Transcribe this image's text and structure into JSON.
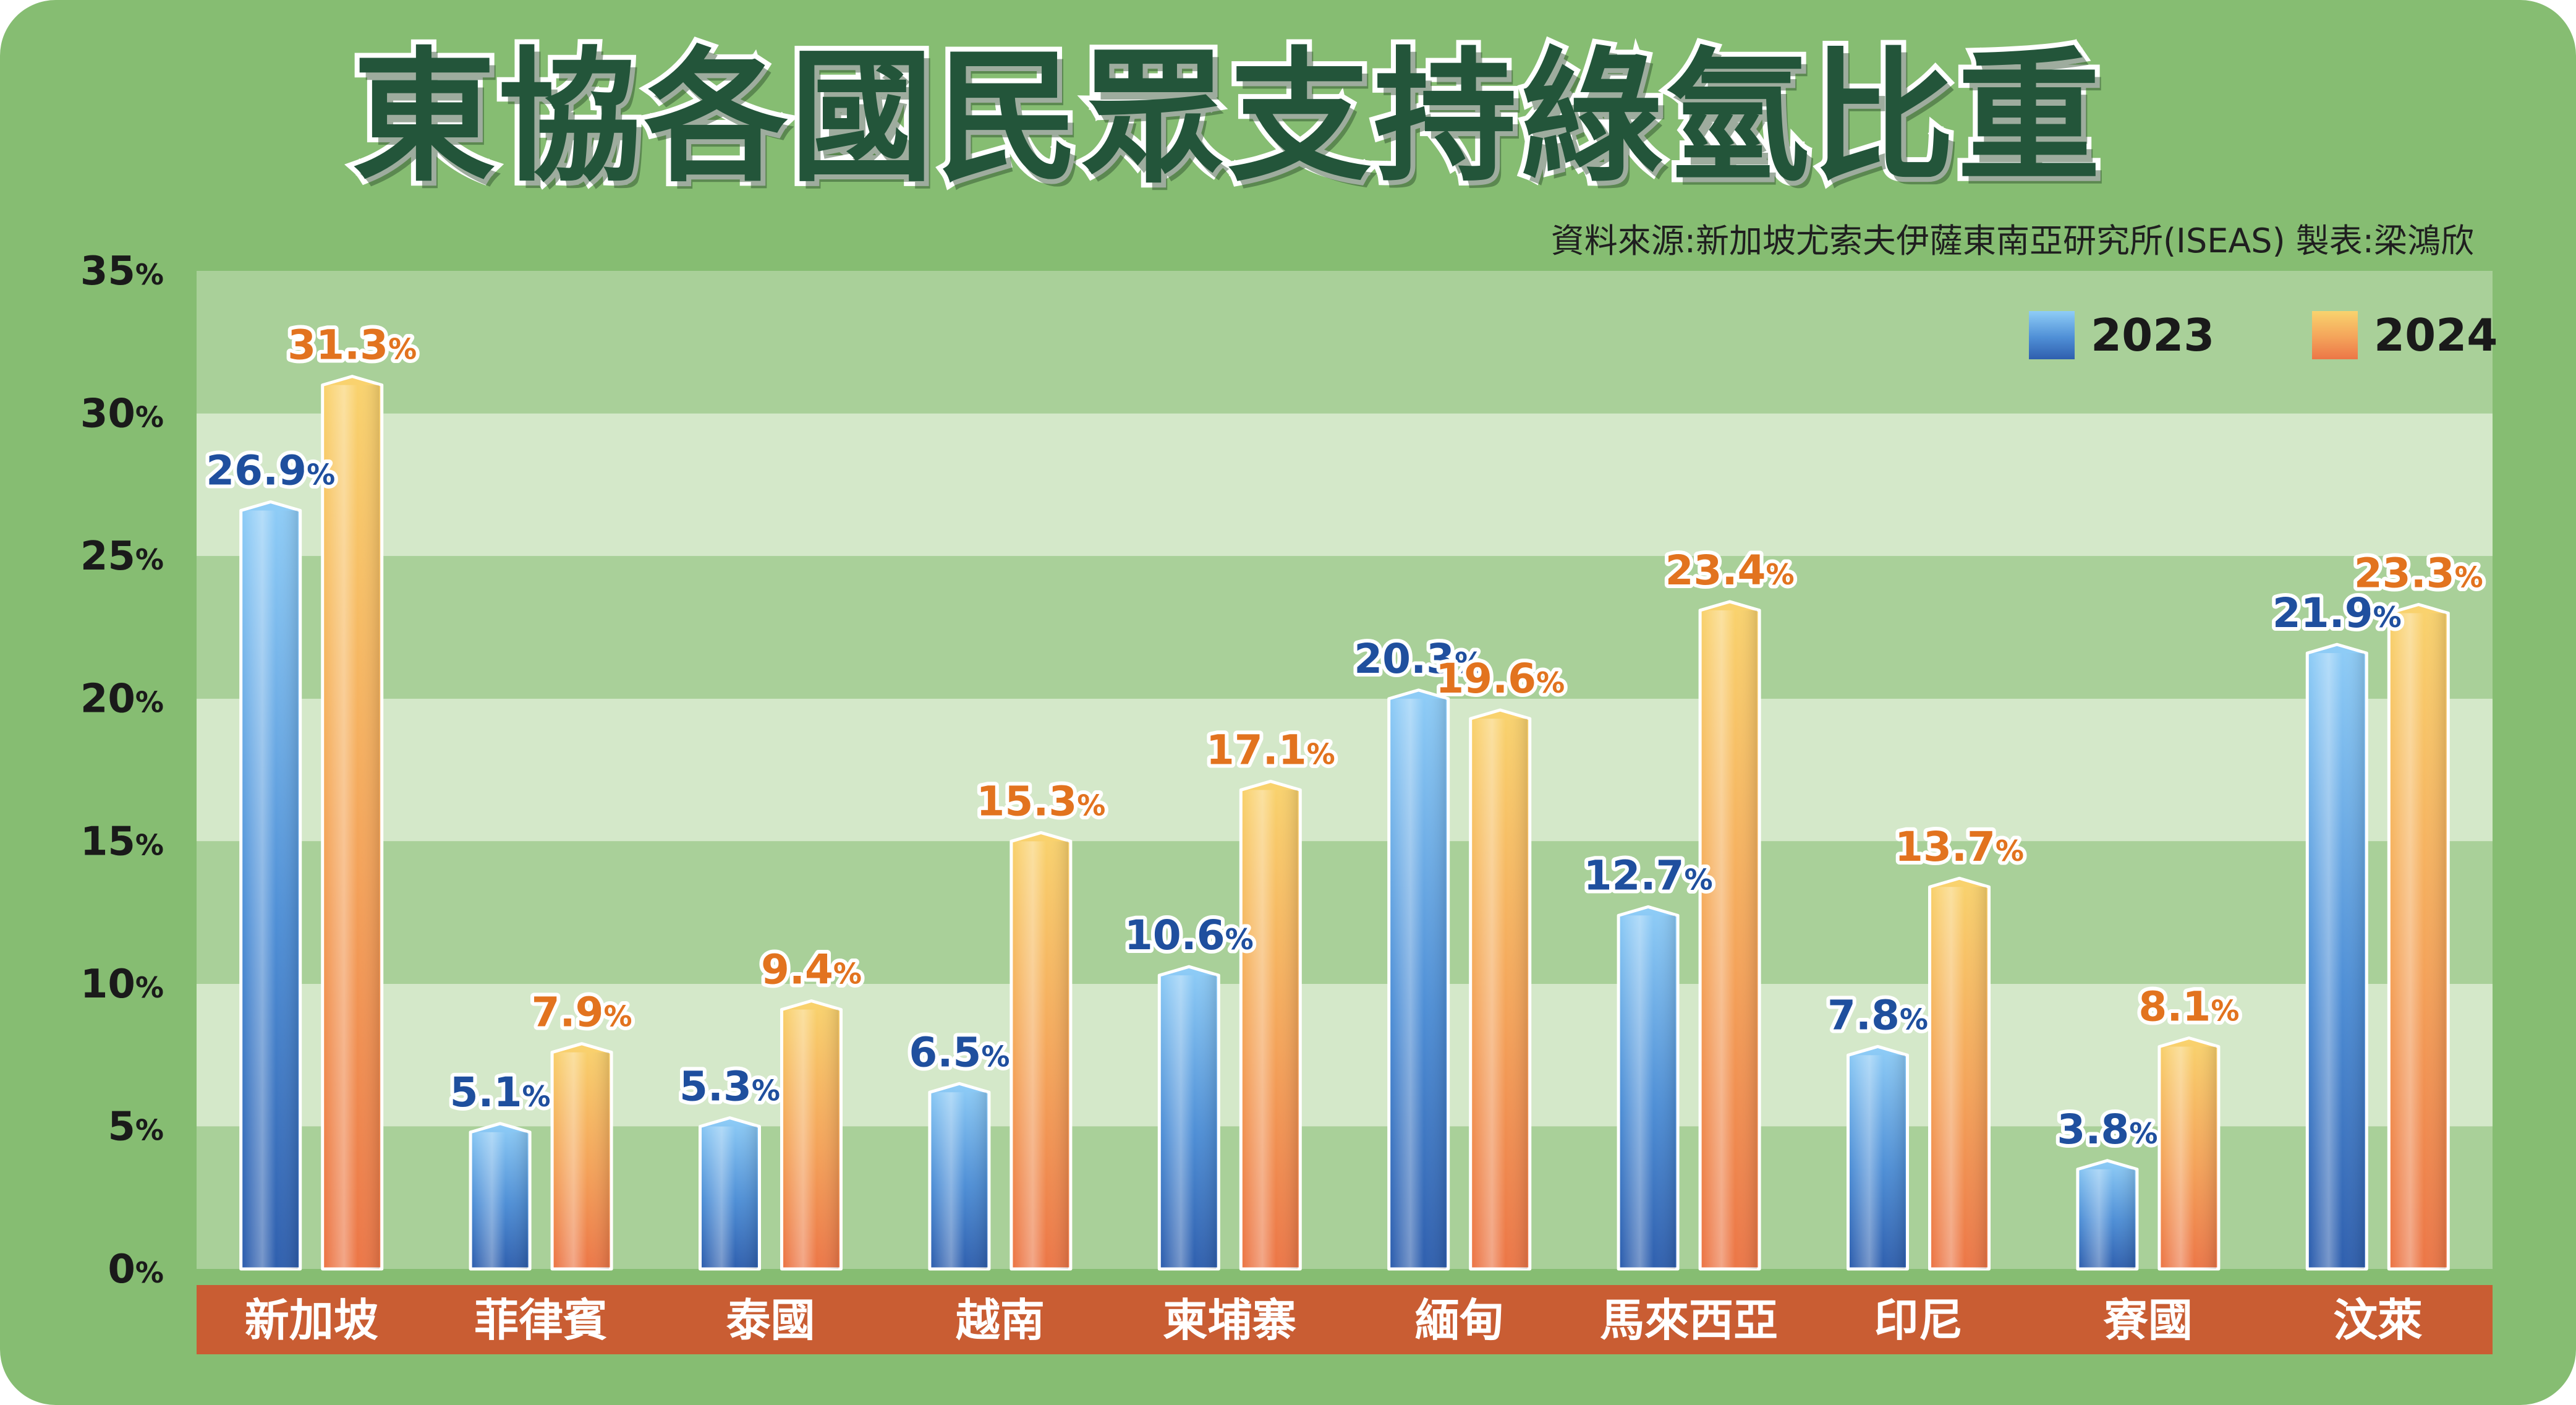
{
  "colors": {
    "background": "#86bd72",
    "series_2023": "#3a6fc4",
    "series_2024": "#f08a48",
    "category_band": "#c95d33"
  },
  "chart_data": {
    "type": "bar",
    "title": "東協各國民眾支持綠氫比重",
    "subtitle": "資料來源:新加坡尤索夫伊薩東南亞研究所(ISEAS)  製表:梁鴻欣",
    "categories": [
      "新加坡",
      "菲律賓",
      "泰國",
      "越南",
      "柬埔寨",
      "緬甸",
      "馬來西亞",
      "印尼",
      "寮國",
      "汶萊"
    ],
    "series": [
      {
        "name": "2023",
        "values": [
          26.9,
          5.1,
          5.3,
          6.5,
          10.6,
          20.3,
          12.7,
          7.8,
          3.8,
          21.9
        ]
      },
      {
        "name": "2024",
        "values": [
          31.3,
          7.9,
          9.4,
          15.3,
          17.1,
          19.6,
          23.4,
          13.7,
          8.1,
          23.3
        ]
      }
    ],
    "value_suffix": "%",
    "yticks": [
      "0%",
      "5%",
      "10%",
      "15%",
      "20%",
      "25%",
      "30%",
      "35%"
    ],
    "ylim": [
      0,
      35
    ],
    "xlabel": "",
    "ylabel": "",
    "legend": "top-right",
    "grid": "alternating horizontal bands"
  }
}
